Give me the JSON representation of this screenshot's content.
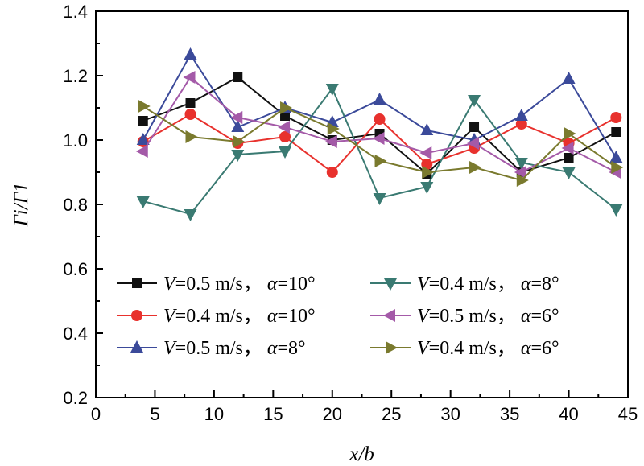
{
  "chart_data": {
    "type": "line",
    "title": "",
    "xlabel": "x/b",
    "ylabel": "Γi/Γ1",
    "xlim": [
      0,
      45
    ],
    "ylim": [
      0.2,
      1.4
    ],
    "xticks": [
      0,
      5,
      10,
      15,
      20,
      25,
      30,
      35,
      40,
      45
    ],
    "yticks": [
      0.2,
      0.4,
      0.6,
      0.8,
      1.0,
      1.2,
      1.4
    ],
    "xtick_labels": [
      "0",
      "5",
      "10",
      "15",
      "20",
      "25",
      "30",
      "35",
      "40",
      "45"
    ],
    "ytick_labels": [
      "0.2",
      "0.4",
      "0.6",
      "0.8",
      "1.0",
      "1.2",
      "1.4"
    ],
    "grid": false,
    "legend_position": "bottom-center",
    "x": [
      4,
      8,
      12,
      16,
      20,
      24,
      28,
      32,
      36,
      40,
      44
    ],
    "series": [
      {
        "name": "V=0.5 m/s，α=10°",
        "v": "0.5 m/s，",
        "alpha": "10°",
        "marker": "square",
        "color": "#111111",
        "values": [
          1.06,
          1.115,
          1.195,
          1.075,
          1.0,
          1.02,
          0.895,
          1.04,
          0.9,
          0.945,
          1.025
        ]
      },
      {
        "name": "V=0.4 m/s，α=10°",
        "v": "0.4 m/s，",
        "alpha": "10°",
        "marker": "circle",
        "color": "#e8312d",
        "values": [
          0.995,
          1.08,
          0.99,
          1.01,
          0.9,
          1.065,
          0.925,
          0.975,
          1.05,
          0.99,
          1.07
        ]
      },
      {
        "name": "V=0.5 m/s，α=8°",
        "v": "0.5 m/s，",
        "alpha": "8°",
        "marker": "triangle-up",
        "color": "#3b4a9a",
        "values": [
          1.0,
          1.265,
          1.04,
          1.1,
          1.055,
          1.125,
          1.03,
          1.0,
          1.075,
          1.19,
          0.945
        ]
      },
      {
        "name": "V=0.4 m/s，α=8°",
        "v": "0.4 m/s，",
        "alpha": "8°",
        "marker": "triangle-down",
        "color": "#3a7a72",
        "values": [
          0.81,
          0.77,
          0.955,
          0.965,
          1.16,
          0.82,
          0.855,
          1.125,
          0.93,
          0.9,
          0.785
        ]
      },
      {
        "name": "V=0.5 m/s，α=6°",
        "v": "0.5 m/s，",
        "alpha": "6°",
        "marker": "triangle-left",
        "color": "#a45aa8",
        "values": [
          0.965,
          1.195,
          1.07,
          1.04,
          0.995,
          1.005,
          0.96,
          0.99,
          0.9,
          0.975,
          0.9
        ]
      },
      {
        "name": "V=0.4 m/s，α=6°",
        "v": "0.4 m/s，",
        "alpha": "6°",
        "marker": "triangle-right",
        "color": "#7a7a2e",
        "values": [
          1.105,
          1.01,
          0.995,
          1.1,
          1.035,
          0.935,
          0.9,
          0.915,
          0.875,
          1.02,
          0.915
        ]
      }
    ]
  }
}
